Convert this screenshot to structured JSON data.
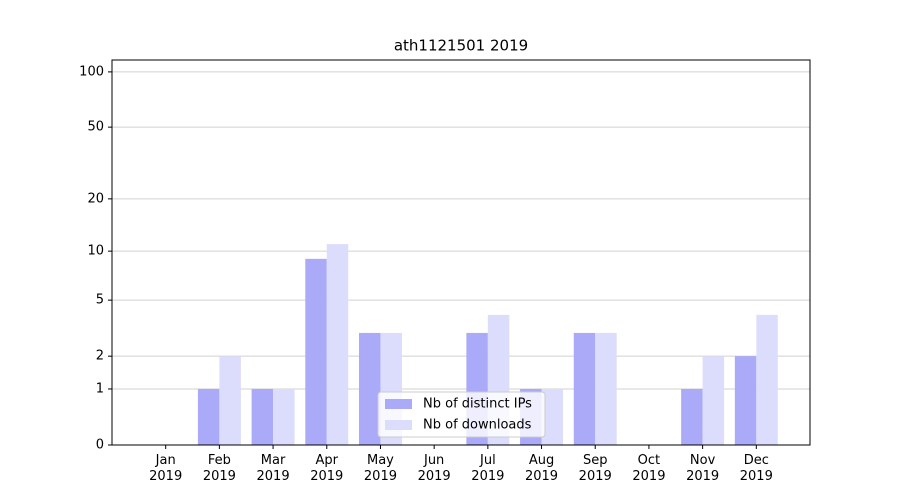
{
  "chart_data": {
    "type": "bar",
    "title": "ath1121501 2019",
    "categories": [
      "Jan 2019",
      "Feb 2019",
      "Mar 2019",
      "Apr 2019",
      "May 2019",
      "Jun 2019",
      "Jul 2019",
      "Aug 2019",
      "Sep 2019",
      "Oct 2019",
      "Nov 2019",
      "Dec 2019"
    ],
    "series": [
      {
        "name": "Nb of distinct IPs",
        "color": "#aaaaf8",
        "values": [
          0,
          1,
          1,
          9,
          3,
          0,
          3,
          1,
          3,
          0,
          1,
          2
        ]
      },
      {
        "name": "Nb of downloads",
        "color": "#dcdcfc",
        "values": [
          0,
          2,
          1,
          11,
          3,
          0,
          4,
          1,
          3,
          0,
          2,
          4
        ]
      }
    ],
    "yscale": "log1p",
    "ylim": [
      0,
      116
    ],
    "yticks": [
      0,
      1,
      2,
      5,
      10,
      20,
      50,
      100
    ],
    "grid": true,
    "legend": "lower center"
  }
}
